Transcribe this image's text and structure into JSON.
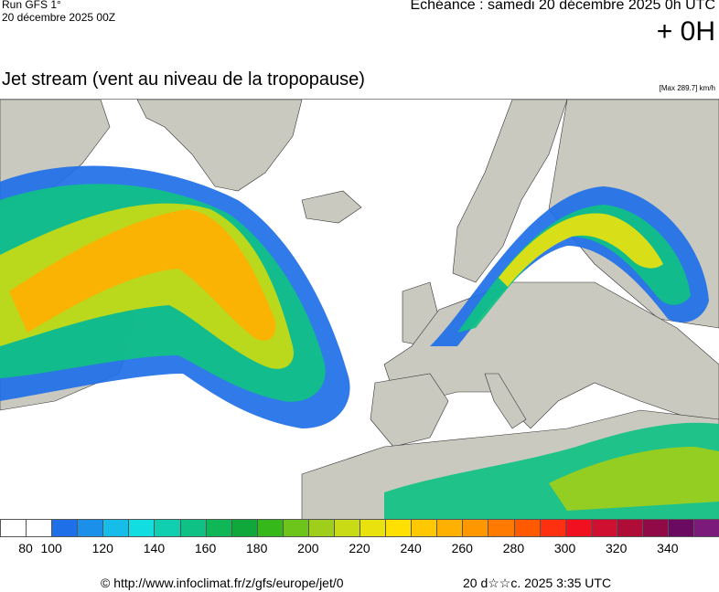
{
  "header": {
    "run_label": "Run GFS 1°",
    "run_date": "20 décembre 2025 00Z",
    "echeance": "Echéance : samedi 20 décembre 2025 0h UTC",
    "offset": "+ 0H"
  },
  "title": "Jet stream (vent au niveau de la tropopause)",
  "max_label": "[Max 289.7] km/h",
  "legend": {
    "colors": [
      "#ffffff",
      "#ffffff",
      "#1e6fe8",
      "#1b90ea",
      "#15bde8",
      "#12dde0",
      "#10cfb0",
      "#0fc184",
      "#10b756",
      "#10a83a",
      "#34b81a",
      "#6dc41a",
      "#9fcf1a",
      "#c9db14",
      "#e9e20f",
      "#ffe000",
      "#ffc800",
      "#ffb000",
      "#ff9800",
      "#ff7a00",
      "#ff5a00",
      "#ff3010",
      "#f01020",
      "#d01030",
      "#b00c38",
      "#900a48",
      "#6a0a60",
      "#7b1a7b"
    ],
    "ticks": [
      "80",
      "100",
      "120",
      "140",
      "160",
      "180",
      "200",
      "220",
      "240",
      "260",
      "280",
      "300",
      "320",
      "340"
    ]
  },
  "footer": {
    "url": "© http://www.infoclimat.fr/z/gfs/europe/jet/0",
    "date": "20 d☆☆c. 2025  3:35 UTC"
  },
  "colors": {
    "ocean": "#ffffff",
    "land": "#c9c9c0",
    "jet_low": "#1e6fe8",
    "jet_mid": "#10c184",
    "jet_high": "#ffe000",
    "jet_core": "#ff9800"
  }
}
